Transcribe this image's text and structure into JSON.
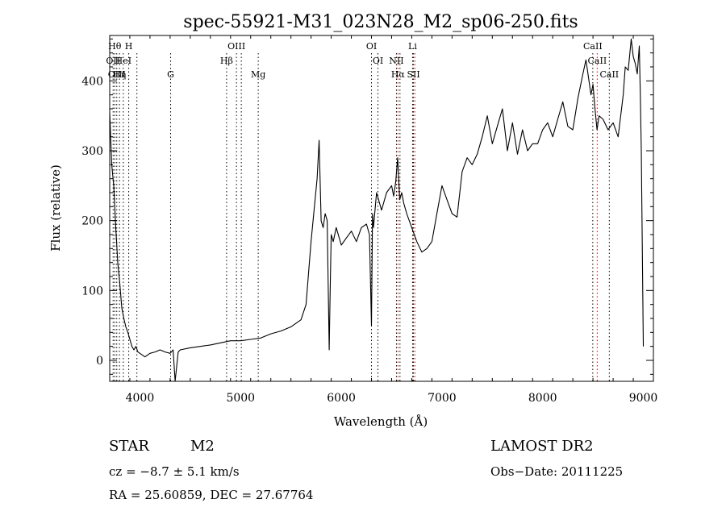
{
  "chart_data": {
    "type": "line",
    "title": "spec-55921-M31_023N28_M2_sp06-250.fits",
    "xlabel": "Wavelength (Å)",
    "ylabel": "Flux (relative)",
    "xlim": [
      3700,
      9100
    ],
    "ylim": [
      -30,
      465
    ],
    "xticks": [
      4000,
      5000,
      6000,
      7000,
      8000,
      9000
    ],
    "yticks": [
      0,
      100,
      200,
      300,
      400
    ],
    "grid": false,
    "series": [
      {
        "x": [
          3700,
          3720,
          3740,
          3760,
          3780,
          3800,
          3820,
          3840,
          3860,
          3880,
          3900,
          3920,
          3940,
          3960,
          3980,
          4000,
          4050,
          4100,
          4150,
          4200,
          4250,
          4300,
          4330,
          4350,
          4380,
          4400,
          4500,
          4600,
          4700,
          4800,
          4900,
          5000,
          5100,
          5200,
          5300,
          5400,
          5500,
          5600,
          5650,
          5700,
          5720,
          5740,
          5760,
          5780,
          5800,
          5820,
          5840,
          5860,
          5880,
          5890,
          5900,
          5920,
          5950,
          6000,
          6050,
          6100,
          6150,
          6200,
          6250,
          6280,
          6300,
          6310,
          6320,
          6350,
          6400,
          6450,
          6500,
          6520,
          6540,
          6560,
          6580,
          6600,
          6620,
          6650,
          6700,
          6750,
          6800,
          6850,
          6900,
          6950,
          7000,
          7050,
          7100,
          7150,
          7200,
          7250,
          7300,
          7350,
          7400,
          7450,
          7500,
          7550,
          7600,
          7650,
          7700,
          7750,
          7800,
          7850,
          7900,
          7950,
          8000,
          8050,
          8100,
          8150,
          8200,
          8250,
          8300,
          8350,
          8400,
          8430,
          8450,
          8480,
          8500,
          8520,
          8540,
          8560,
          8600,
          8650,
          8700,
          8750,
          8800,
          8820,
          8850,
          8880,
          8900,
          8920,
          8940,
          8960,
          8970,
          8980,
          9000
        ],
        "values": [
          355,
          280,
          250,
          190,
          140,
          110,
          75,
          60,
          48,
          40,
          30,
          20,
          15,
          20,
          12,
          10,
          5,
          10,
          12,
          15,
          12,
          10,
          15,
          -30,
          12,
          15,
          18,
          20,
          22,
          25,
          28,
          28,
          30,
          32,
          38,
          42,
          48,
          58,
          80,
          170,
          200,
          230,
          260,
          315,
          200,
          190,
          210,
          200,
          15,
          100,
          180,
          170,
          190,
          165,
          175,
          185,
          170,
          190,
          195,
          180,
          50,
          210,
          190,
          240,
          215,
          240,
          250,
          235,
          255,
          290,
          230,
          240,
          225,
          210,
          190,
          170,
          155,
          160,
          170,
          210,
          250,
          230,
          210,
          205,
          270,
          290,
          280,
          295,
          320,
          350,
          310,
          335,
          360,
          300,
          340,
          295,
          330,
          300,
          310,
          310,
          330,
          340,
          320,
          345,
          370,
          335,
          330,
          375,
          410,
          430,
          410,
          380,
          395,
          360,
          330,
          350,
          345,
          330,
          340,
          320,
          380,
          420,
          415,
          460,
          435,
          425,
          410,
          450,
          380,
          300,
          20
        ],
        "color": "#000000"
      }
    ],
    "lines": [
      {
        "x": 3734,
        "label": "OII",
        "row": 1,
        "color": "#000000"
      },
      {
        "x": 3750,
        "label": "Hθ",
        "row": 0,
        "color": "#000000"
      },
      {
        "x": 3770,
        "label": "OIII",
        "row": 2,
        "color": "#000000"
      },
      {
        "x": 3797,
        "label": "Hη",
        "row": 2,
        "color": "#000000"
      },
      {
        "x": 3835,
        "label": "HeI",
        "row": 1,
        "color": "#000000"
      },
      {
        "x": 3889,
        "label": "H",
        "row": 0,
        "color": "#000000"
      },
      {
        "x": 3970,
        "label": "",
        "row": 0,
        "color": "#000000"
      },
      {
        "x": 4305,
        "label": "G",
        "row": 2,
        "color": "#000000"
      },
      {
        "x": 4861,
        "label": "Hβ",
        "row": 1,
        "color": "#000000"
      },
      {
        "x": 4959,
        "label": "OIII",
        "row": 0,
        "color": "#000000"
      },
      {
        "x": 5007,
        "label": "",
        "row": 0,
        "color": "#000000"
      },
      {
        "x": 5175,
        "label": "Mg",
        "row": 2,
        "color": "#000000"
      },
      {
        "x": 6300,
        "label": "OI",
        "row": 0,
        "color": "#000000"
      },
      {
        "x": 6364,
        "label": "OI",
        "row": 1,
        "color": "#000000"
      },
      {
        "x": 6548,
        "label": "NII",
        "row": 1,
        "color": "#000000"
      },
      {
        "x": 6563,
        "label": "Hα",
        "row": 2,
        "color": "#cc0000"
      },
      {
        "x": 6583,
        "label": "",
        "row": 1,
        "color": "#000000"
      },
      {
        "x": 6708,
        "label": "Li",
        "row": 0,
        "color": "#000000"
      },
      {
        "x": 6717,
        "label": "SII",
        "row": 2,
        "color": "#000000"
      },
      {
        "x": 6731,
        "label": "",
        "row": 2,
        "color": "#cc0000"
      },
      {
        "x": 8498,
        "label": "CaII",
        "row": 0,
        "color": "#000000"
      },
      {
        "x": 8542,
        "label": "CaII",
        "row": 1,
        "color": "#cc0000"
      },
      {
        "x": 8662,
        "label": "CaII",
        "row": 2,
        "color": "#000000"
      }
    ]
  },
  "info": {
    "object_class": "STAR",
    "subclass": "M2",
    "survey": "LAMOST DR2",
    "cz": "cz = −8.7 ± 5.1 km/s",
    "obs_date": "Obs−Date: 20111225",
    "coords": "RA =  25.60859, DEC =  27.67764"
  }
}
